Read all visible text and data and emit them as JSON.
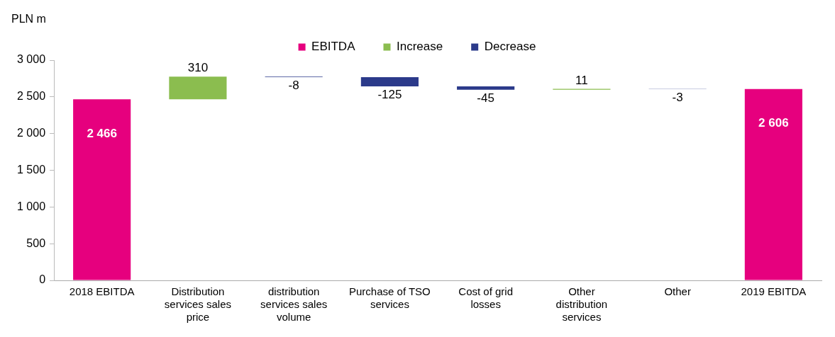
{
  "chart_data": {
    "type": "bar",
    "ylabel": "PLN m",
    "categories": [
      "2018 EBITDA",
      "Distribution services sales price",
      "distribution services sales volume",
      "Purchase of TSO services",
      "Cost of grid losses",
      "Other distribution services",
      "Other",
      "2019 EBITDA"
    ],
    "series": [
      {
        "name": "EBITDA",
        "color": "#e6007e",
        "base": [
          0,
          null,
          null,
          null,
          null,
          null,
          null,
          0
        ],
        "values": [
          2466,
          null,
          null,
          null,
          null,
          null,
          null,
          2606
        ],
        "value_labels": [
          "2 466",
          null,
          null,
          null,
          null,
          null,
          null,
          "2 606"
        ]
      },
      {
        "name": "Increase",
        "color": "#8bbd4f",
        "base": [
          null,
          2466,
          null,
          null,
          null,
          2598,
          null,
          null
        ],
        "values": [
          null,
          310,
          null,
          null,
          null,
          11,
          null,
          null
        ],
        "value_labels": [
          null,
          "310",
          null,
          null,
          null,
          "11",
          null,
          null
        ]
      },
      {
        "name": "Decrease",
        "color": "#2b3a8a",
        "base": [
          null,
          null,
          2776,
          2768,
          2643,
          null,
          2609,
          null
        ],
        "values": [
          null,
          null,
          -8,
          -125,
          -45,
          null,
          -3,
          null
        ],
        "value_labels": [
          null,
          null,
          "-8",
          "-125",
          "-45",
          null,
          "-3",
          null
        ]
      }
    ],
    "ylim": [
      0,
      3000
    ],
    "yticks": [
      {
        "value": 0,
        "label": "0"
      },
      {
        "value": 500,
        "label": "500"
      },
      {
        "value": 1000,
        "label": "1 000"
      },
      {
        "value": 1500,
        "label": "1 500"
      },
      {
        "value": 2000,
        "label": "2 000"
      },
      {
        "value": 2500,
        "label": "2 500"
      },
      {
        "value": 3000,
        "label": "3 000"
      }
    ],
    "grid": false,
    "legend": "top"
  }
}
